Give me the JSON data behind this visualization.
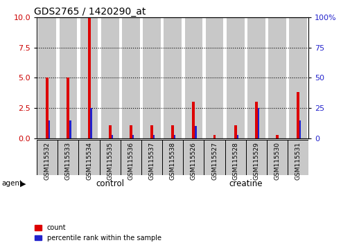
{
  "title": "GDS2765 / 1420290_at",
  "samples": [
    "GSM115532",
    "GSM115533",
    "GSM115534",
    "GSM115535",
    "GSM115536",
    "GSM115537",
    "GSM115538",
    "GSM115526",
    "GSM115527",
    "GSM115528",
    "GSM115529",
    "GSM115530",
    "GSM115531"
  ],
  "count_values": [
    5.0,
    5.0,
    10.0,
    1.1,
    1.1,
    1.1,
    1.1,
    3.0,
    0.3,
    1.1,
    3.0,
    0.3,
    3.8
  ],
  "percentile_values": [
    15,
    15,
    25,
    3,
    3,
    3,
    3,
    10,
    0,
    3,
    25,
    0,
    15
  ],
  "ylim_left": [
    0,
    10
  ],
  "ylim_right": [
    0,
    100
  ],
  "yticks_left": [
    0,
    2.5,
    5.0,
    7.5,
    10
  ],
  "yticks_right": [
    0,
    25,
    50,
    75,
    100
  ],
  "ytick_labels_right": [
    "0",
    "25",
    "50",
    "75",
    "100%"
  ],
  "red_color": "#dd0000",
  "blue_color": "#2222cc",
  "background_color": "#ffffff",
  "tick_label_color_left": "#cc0000",
  "tick_label_color_right": "#2222cc",
  "legend_count_label": "count",
  "legend_pct_label": "percentile rank within the sample",
  "bar_bg_color": "#c8c8c8",
  "control_color": "#bbffbb",
  "creatine_color": "#44ee44",
  "n_control": 7,
  "n_total": 13
}
